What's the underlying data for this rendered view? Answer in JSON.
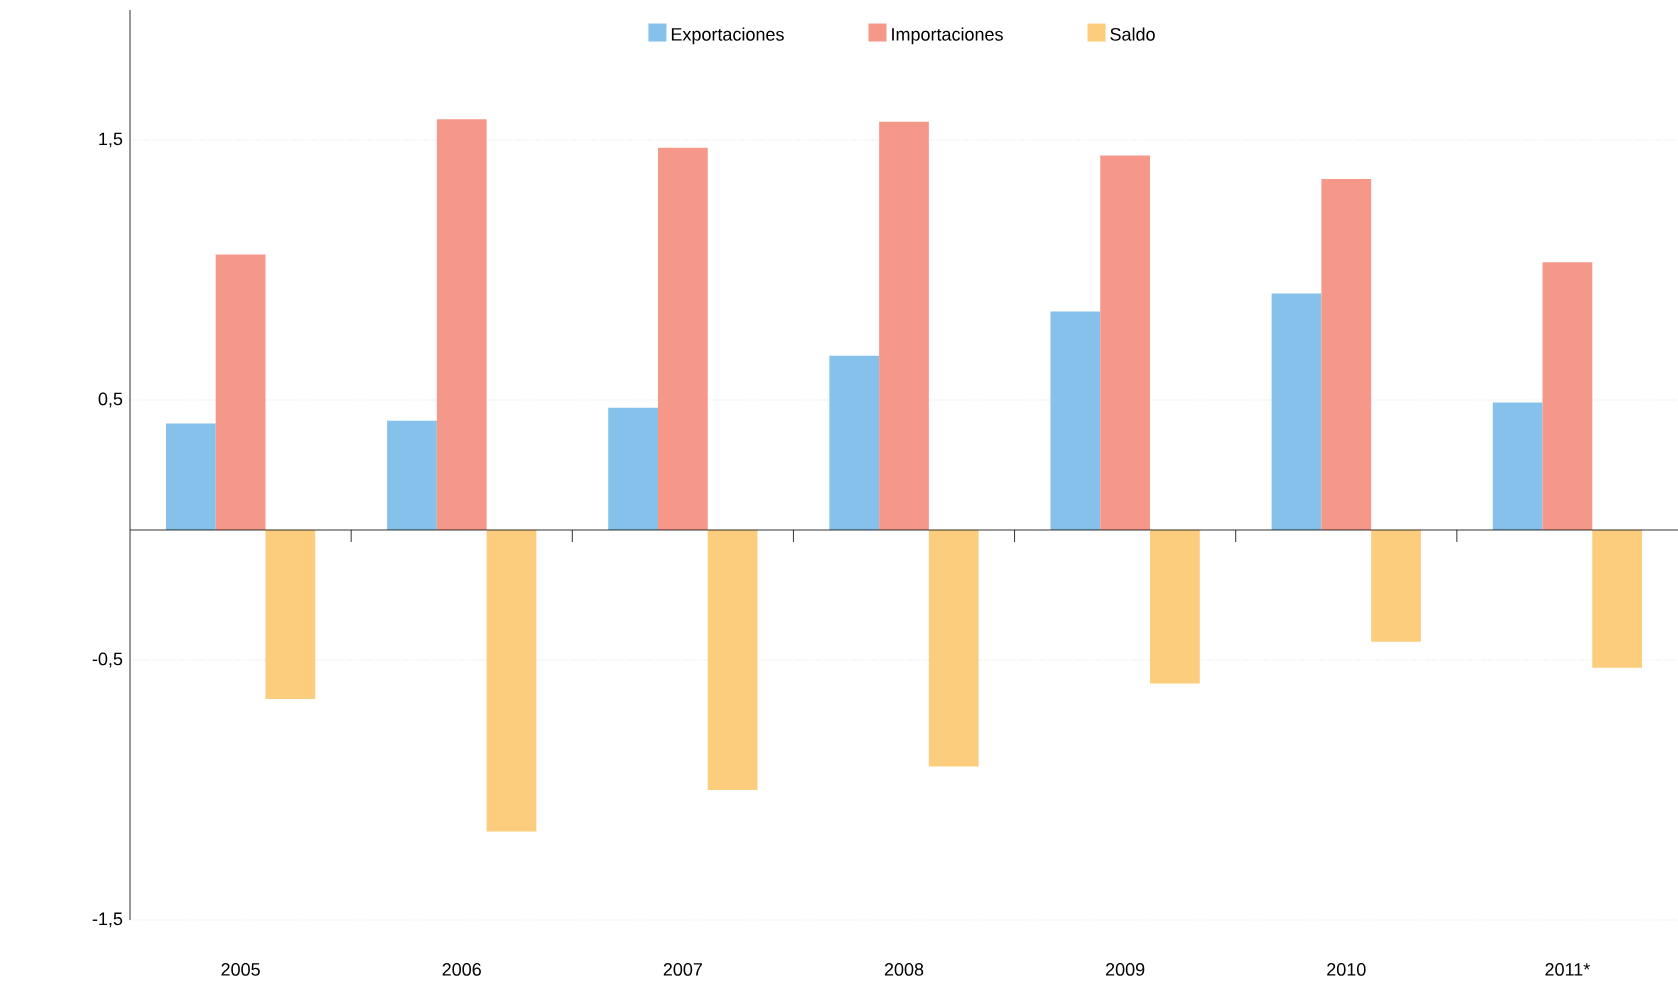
{
  "chart_data": {
    "type": "bar",
    "categories": [
      "2005",
      "2006",
      "2007",
      "2008",
      "2009",
      "2010",
      "2011*"
    ],
    "series": [
      {
        "name": "Exportaciones",
        "color": "#85c1ea",
        "values": [
          0.41,
          0.42,
          0.47,
          0.67,
          0.84,
          0.91,
          0.49
        ]
      },
      {
        "name": "Importaciones",
        "color": "#f5988a",
        "values": [
          1.06,
          1.58,
          1.47,
          1.57,
          1.44,
          1.35,
          1.03
        ]
      },
      {
        "name": "Saldo",
        "color": "#fdcd7e",
        "values": [
          -0.65,
          -1.16,
          -1.0,
          -0.91,
          -0.59,
          -0.43,
          -0.53
        ]
      }
    ],
    "ylim": [
      -1.5,
      2.0
    ],
    "yticks": [
      {
        "value": -1.5,
        "label": "-1,5"
      },
      {
        "value": -0.5,
        "label": "-0,5"
      },
      {
        "value": 0.5,
        "label": "0,5"
      },
      {
        "value": 1.5,
        "label": "1,5"
      }
    ],
    "grid": "y",
    "legend": "top"
  }
}
